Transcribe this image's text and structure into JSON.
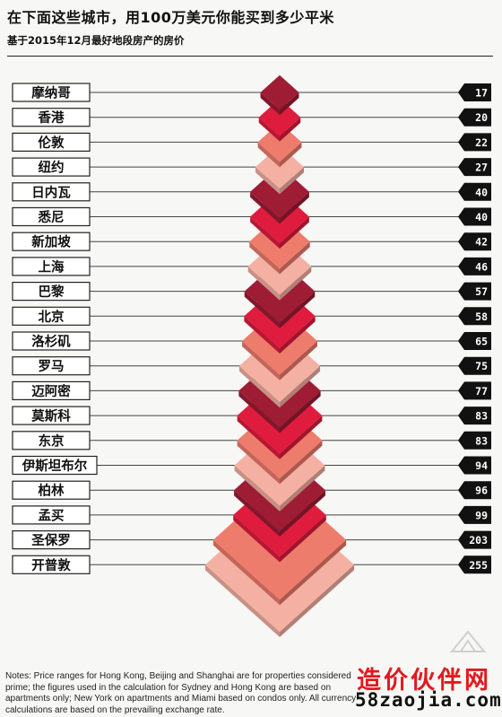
{
  "title": "在下面这些城市，用100万美元你能买到多少平米",
  "subtitle": "基于2015年12月最好地段房产的房价",
  "chart_data": {
    "type": "bar",
    "categories": [
      "摩纳哥",
      "香港",
      "伦敦",
      "纽约",
      "日内瓦",
      "悉尼",
      "新加坡",
      "上海",
      "巴黎",
      "北京",
      "洛杉矶",
      "罗马",
      "迈阿密",
      "莫斯科",
      "东京",
      "伊斯坦布尔",
      "柏林",
      "孟买",
      "圣保罗",
      "开普敦"
    ],
    "values": [
      17,
      20,
      22,
      27,
      40,
      40,
      42,
      46,
      57,
      58,
      65,
      75,
      77,
      83,
      83,
      94,
      96,
      99,
      203,
      255
    ],
    "title": "在下面这些城市，用100万美元你能买到多少平米",
    "subtitle": "基于2015年12月最好地段房产的房价",
    "xlabel": "",
    "ylabel": "",
    "colors": [
      "#9e1c34",
      "#e01c3e",
      "#ee7c6c",
      "#f4b1a3"
    ]
  },
  "notes": "Notes: Price ranges for Hong Kong, Beijing and Shanghai are for properties considered prime; the figures used in the calculation for Sydney and Hong Kong are based on apartments only; New York on apartments and Miami based on condos only. All currency calculations are based on the prevailing exchange rate.",
  "watermark": {
    "line1": "造价伙伴网",
    "line2": "58zaojia.com"
  }
}
